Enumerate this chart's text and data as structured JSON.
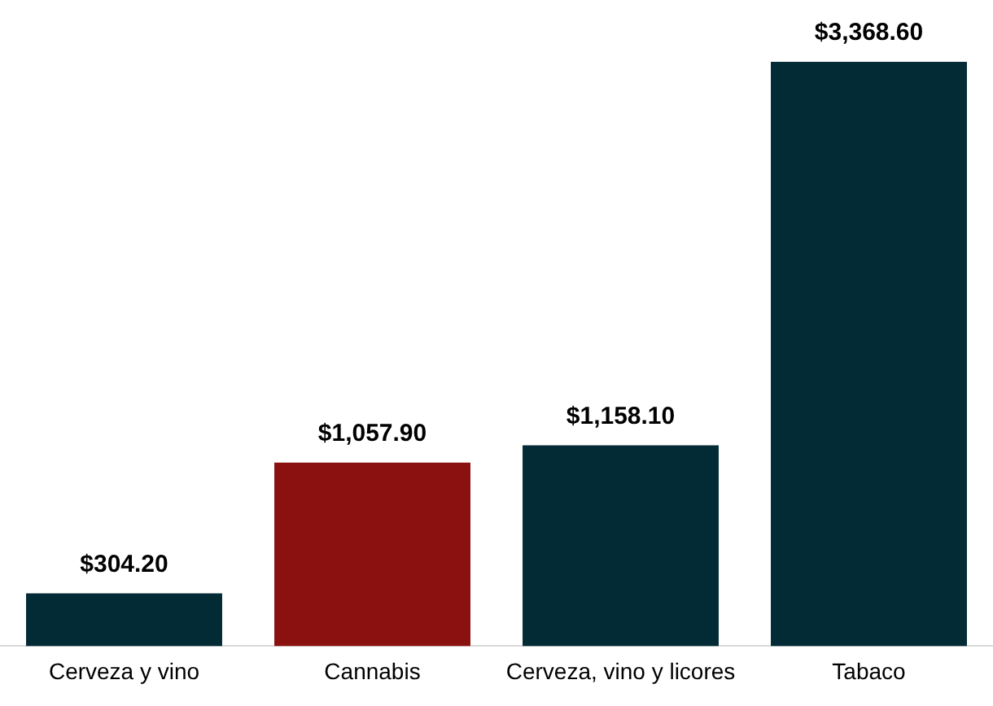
{
  "chart_data": {
    "type": "bar",
    "categories": [
      "Cerveza y vino",
      "Cannabis",
      "Cerveza, vino y licores",
      "Tabaco"
    ],
    "values": [
      304.2,
      1057.9,
      1158.1,
      3368.6
    ],
    "colors": [
      "#032b36",
      "#8b1010",
      "#032b36",
      "#032b36"
    ],
    "value_labels": [
      "$304.20",
      "$1,057.90",
      "$1,158.10",
      "$3,368.60"
    ],
    "grid": false,
    "legend": false
  }
}
